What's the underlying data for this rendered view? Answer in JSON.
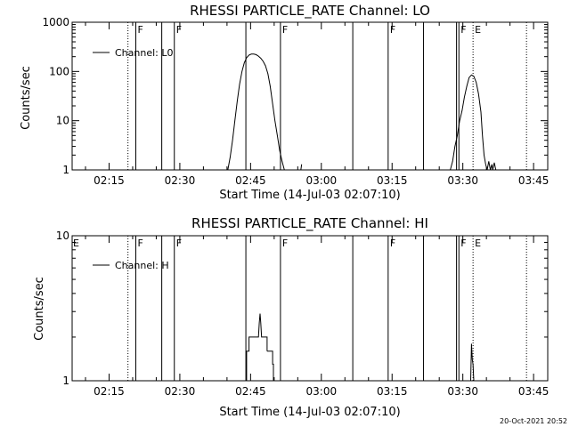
{
  "date_stamp": "20-Oct-2021 20:52",
  "colors": {
    "background": "#ffffff",
    "foreground": "#000000"
  },
  "chart_data": [
    {
      "type": "line",
      "title": "RHESSI PARTICLE_RATE Channel: LO",
      "xlabel": "Start Time (14-Jul-03 02:07:10)",
      "ylabel": "Counts/sec",
      "y_scale": "log",
      "ylim": [
        1,
        1000
      ],
      "xlim": [
        "02:07:10",
        "03:48:00"
      ],
      "x_ticks": [
        "02:15",
        "02:30",
        "02:45",
        "03:00",
        "03:15",
        "03:30",
        "03:45"
      ],
      "y_ticks": [
        "1",
        "10",
        "100",
        "1000"
      ],
      "legend": {
        "label": "Channel: L0",
        "placement": "top-left"
      },
      "series": [
        {
          "name": "Channel: L0",
          "segments": [
            {
              "x": [
                "02:40:10",
                "02:40:40",
                "02:41:10",
                "02:41:40",
                "02:42:10",
                "02:42:40",
                "02:43:10",
                "02:43:40",
                "02:44:10",
                "02:44:40",
                "02:45:10",
                "02:45:40",
                "02:46:10",
                "02:46:40",
                "02:47:10",
                "02:47:40",
                "02:48:10",
                "02:48:40",
                "02:49:10",
                "02:49:40",
                "02:50:10",
                "02:50:40",
                "02:51:10",
                "02:51:40",
                "02:52:10",
                "02:52:40"
              ],
              "y": [
                1,
                1.8,
                4,
                10,
                25,
                55,
                100,
                150,
                190,
                215,
                225,
                225,
                220,
                205,
                185,
                160,
                130,
                90,
                50,
                22,
                10,
                5,
                2.5,
                1.5,
                1,
                1
              ]
            },
            {
              "x": [
                "02:55:40",
                "02:55:50"
              ],
              "y": [
                1,
                1.3
              ]
            },
            {
              "x": [
                "03:27:20",
                "03:27:50",
                "03:28:20",
                "03:28:50",
                "03:29:20",
                "03:29:50",
                "03:30:20",
                "03:30:50",
                "03:31:20",
                "03:31:50",
                "03:32:20",
                "03:32:50",
                "03:33:20",
                "03:33:50",
                "03:34:10",
                "03:34:30",
                "03:34:50",
                "03:35:10",
                "03:35:30",
                "03:35:50",
                "03:36:10",
                "03:36:20",
                "03:36:40",
                "03:37:00",
                "03:37:20"
              ],
              "y": [
                1,
                1.5,
                3,
                5,
                10,
                16,
                30,
                50,
                75,
                85,
                80,
                60,
                35,
                15,
                5,
                2,
                1.3,
                1,
                1.5,
                1,
                1.3,
                1,
                1.4,
                1,
                1
              ]
            }
          ]
        }
      ],
      "vertical_markers": [
        {
          "time": "02:19:00",
          "style": "dotted"
        },
        {
          "time": "02:20:40",
          "style": "solid",
          "label": "F"
        },
        {
          "time": "02:26:10",
          "style": "solid"
        },
        {
          "time": "02:28:50",
          "style": "solid",
          "label": "F"
        },
        {
          "time": "02:44:00",
          "style": "solid"
        },
        {
          "time": "02:51:20",
          "style": "solid",
          "label": "F"
        },
        {
          "time": "03:06:40",
          "style": "solid"
        },
        {
          "time": "03:14:10",
          "style": "solid",
          "label": "F"
        },
        {
          "time": "03:21:40",
          "style": "solid"
        },
        {
          "time": "03:28:40",
          "style": "solid"
        },
        {
          "time": "03:29:10",
          "style": "solid",
          "label": "F"
        },
        {
          "time": "03:32:10",
          "style": "dotted",
          "label": "E"
        },
        {
          "time": "03:43:30",
          "style": "dotted"
        }
      ]
    },
    {
      "type": "line",
      "title": "RHESSI PARTICLE_RATE Channel: HI",
      "xlabel": "Start Time (14-Jul-03 02:07:10)",
      "ylabel": "Counts/sec",
      "y_scale": "log",
      "ylim": [
        1,
        10
      ],
      "xlim": [
        "02:07:10",
        "03:48:00"
      ],
      "x_ticks": [
        "02:15",
        "02:30",
        "02:45",
        "03:00",
        "03:15",
        "03:30",
        "03:45"
      ],
      "y_ticks": [
        "1",
        "10"
      ],
      "legend": {
        "label": "Channel: H",
        "placement": "top-left"
      },
      "series": [
        {
          "name": "Channel: H",
          "segments": [
            {
              "x": [
                "02:44:10",
                "02:44:10",
                "02:44:40",
                "02:44:40",
                "02:46:40",
                "02:46:50",
                "02:47:00",
                "02:47:10",
                "02:47:20",
                "02:48:30",
                "02:48:30"
              ],
              "y": [
                1,
                1.6,
                1.6,
                2,
                2,
                2.5,
                2.9,
                2.5,
                2,
                2,
                1.6
              ]
            },
            {
              "x": [
                "02:48:30",
                "02:49:40",
                "02:49:40",
                "02:49:50",
                "02:49:50"
              ],
              "y": [
                1.6,
                1.6,
                1.3,
                1.3,
                1
              ]
            },
            {
              "x": [
                "03:31:40",
                "03:31:50",
                "03:32:00",
                "03:32:10",
                "03:32:20"
              ],
              "y": [
                1,
                1.8,
                1.4,
                1.3,
                1
              ]
            }
          ]
        }
      ],
      "vertical_markers": [
        {
          "time": "02:07:10",
          "style": "none",
          "label": "E"
        },
        {
          "time": "02:19:00",
          "style": "dotted"
        },
        {
          "time": "02:20:40",
          "style": "solid",
          "label": "F"
        },
        {
          "time": "02:26:10",
          "style": "solid"
        },
        {
          "time": "02:28:50",
          "style": "solid",
          "label": "F"
        },
        {
          "time": "02:44:00",
          "style": "solid"
        },
        {
          "time": "02:51:20",
          "style": "solid",
          "label": "F"
        },
        {
          "time": "03:06:40",
          "style": "solid"
        },
        {
          "time": "03:14:10",
          "style": "solid",
          "label": "F"
        },
        {
          "time": "03:21:40",
          "style": "solid"
        },
        {
          "time": "03:28:40",
          "style": "solid"
        },
        {
          "time": "03:29:10",
          "style": "solid",
          "label": "F"
        },
        {
          "time": "03:32:10",
          "style": "dotted",
          "label": "E"
        },
        {
          "time": "03:43:30",
          "style": "dotted"
        }
      ]
    }
  ]
}
